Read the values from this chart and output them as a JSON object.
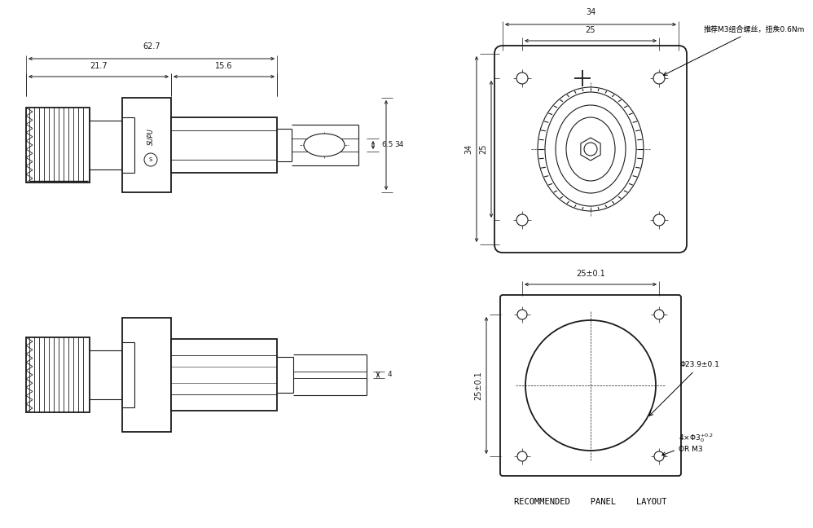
{
  "bg_color": "#ffffff",
  "line_color": "#1a1a1a",
  "dim_color": "#1a1a1a",
  "title_bottom": "RECOMMENDED    PANEL    LAYOUT",
  "annotation_top_right": "推荐M3组合螺丝，扭矦0.6Nm",
  "annotation_bottom_right1": "Φ23.9±0.1",
  "annotation_bottom_right2": "4×Φ3",
  "annotation_bottom_right3": "+0.2\n  0",
  "annotation_bottom_right4": "OR M3",
  "dim_62_7": "62.7",
  "dim_21_7": "21.7",
  "dim_15_6": "15.6",
  "dim_34_h": "34",
  "dim_6_5": "6.5",
  "dim_34_top": "34",
  "dim_25_top": "25",
  "dim_34_side": "34",
  "dim_25_side": "25",
  "dim_4": "4",
  "dim_25_01_h": "25±0.1",
  "dim_25_01_v": "25±0.1"
}
